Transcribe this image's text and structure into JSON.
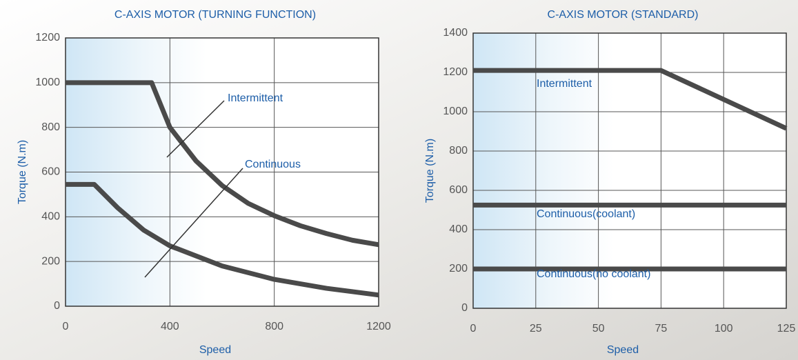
{
  "chart_data": [
    {
      "type": "line",
      "title": "C-AXIS MOTOR (TURNING FUNCTION)",
      "x_label": "Speed",
      "y_label": "Torque (N.m)",
      "xlim": [
        0,
        1200
      ],
      "xticks": [
        0,
        400,
        800,
        1200
      ],
      "ylim": [
        0,
        1200
      ],
      "yticks": [
        0,
        200,
        400,
        600,
        800,
        1000,
        1200
      ],
      "grid": true,
      "series": [
        {
          "name": "Intermittent",
          "color": "#4a4a4a",
          "x": [
            0,
            330,
            400,
            500,
            600,
            700,
            800,
            900,
            1000,
            1100,
            1200
          ],
          "values": [
            1000,
            1000,
            800,
            650,
            540,
            460,
            405,
            360,
            325,
            295,
            275
          ]
        },
        {
          "name": "Continuous",
          "color": "#4a4a4a",
          "x": [
            0,
            110,
            200,
            300,
            400,
            600,
            800,
            1000,
            1200
          ],
          "values": [
            545,
            545,
            440,
            340,
            270,
            180,
            120,
            80,
            50
          ]
        }
      ]
    },
    {
      "type": "line",
      "title": "C-AXIS MOTOR (STANDARD)",
      "x_label": "Speed",
      "y_label": "Torque (N.m)",
      "xlim": [
        0,
        125
      ],
      "xticks": [
        0,
        25,
        50,
        75,
        100,
        125
      ],
      "ylim": [
        0,
        1400
      ],
      "yticks": [
        0,
        200,
        400,
        600,
        800,
        1000,
        1200,
        1400
      ],
      "grid": true,
      "series": [
        {
          "name": "Intermittent",
          "color": "#4a4a4a",
          "x": [
            0,
            75,
            125
          ],
          "values": [
            1210,
            1210,
            915
          ]
        },
        {
          "name": "Continuous(coolant)",
          "color": "#4a4a4a",
          "x": [
            0,
            125
          ],
          "values": [
            525,
            525
          ]
        },
        {
          "name": "Continuous(no coolant)",
          "color": "#4a4a4a",
          "x": [
            0,
            125
          ],
          "values": [
            200,
            200
          ]
        }
      ]
    }
  ]
}
